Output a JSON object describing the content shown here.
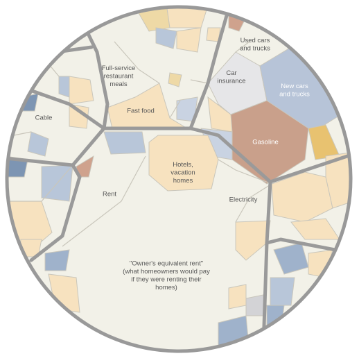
{
  "labels": [
    {
      "lines": [
        "Used cars",
        "and trucks"
      ]
    },
    {
      "lines": [
        "Car",
        "insurance"
      ]
    },
    {
      "lines": [
        "New cars",
        "and trucks"
      ]
    },
    {
      "lines": [
        "Full-service",
        "restaurant",
        "meals"
      ]
    },
    {
      "lines": [
        "Fast food"
      ]
    },
    {
      "lines": [
        "Cable"
      ]
    },
    {
      "lines": [
        "Gasoline"
      ]
    },
    {
      "lines": [
        "Hotels,",
        "vacation",
        "homes"
      ]
    },
    {
      "lines": [
        "Rent"
      ]
    },
    {
      "lines": [
        "Electricity"
      ]
    },
    {
      "lines": [
        "\"Owner's equivalent rent\"",
        "(what homeowners would pay",
        "if they were renting their",
        "homes)"
      ]
    }
  ]
}
